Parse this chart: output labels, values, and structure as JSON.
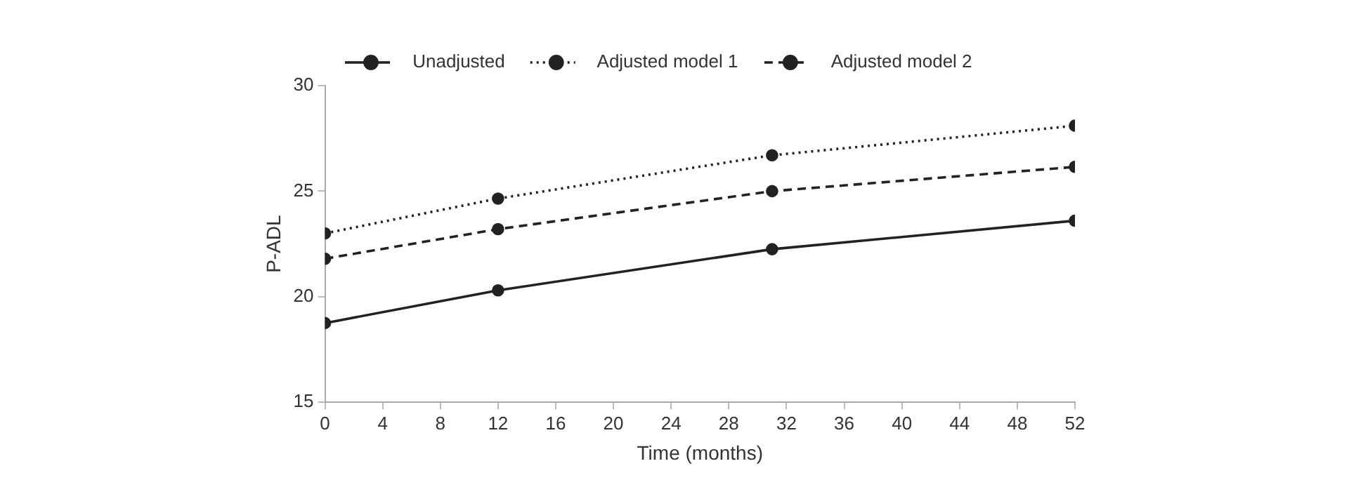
{
  "chart_data": {
    "type": "line",
    "xlabel": "Time (months)",
    "ylabel": "P-ADL",
    "x": [
      0,
      12,
      31,
      52
    ],
    "series": [
      {
        "name": "Unadjusted",
        "color": "#222222",
        "line_style": "solid",
        "values": [
          18.75,
          20.3,
          22.25,
          23.6
        ]
      },
      {
        "name": "Adjusted model 1",
        "color": "#222222",
        "line_style": "dotted",
        "values": [
          23.0,
          24.65,
          26.7,
          28.1
        ]
      },
      {
        "name": "Adjusted model 2",
        "color": "#222222",
        "line_style": "dashed",
        "values": [
          21.8,
          23.2,
          25.0,
          26.15
        ]
      }
    ],
    "xlim": [
      0,
      52
    ],
    "xticks": [
      0,
      4,
      8,
      12,
      16,
      20,
      24,
      28,
      32,
      36,
      40,
      44,
      48,
      52
    ],
    "ylim": [
      15,
      30
    ],
    "yticks": [
      15,
      20,
      25,
      30
    ],
    "grid": false,
    "legend": "top",
    "marker": "circle"
  }
}
